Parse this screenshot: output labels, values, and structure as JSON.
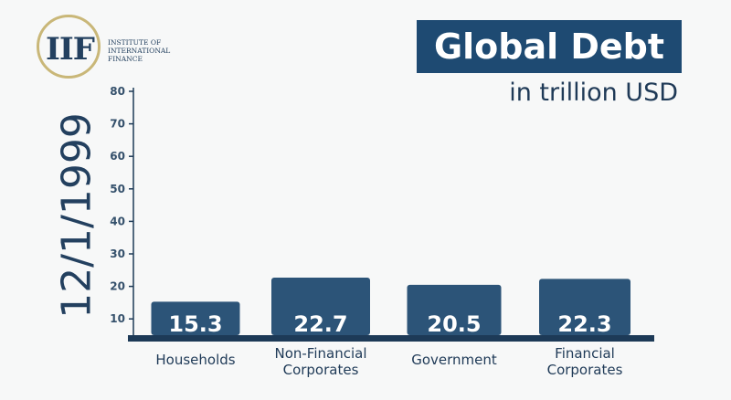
{
  "logo": {
    "mark": "IIF",
    "text_lines": [
      "Institute of",
      "International",
      "Finance"
    ]
  },
  "chart_data": {
    "type": "bar",
    "title": "Global Debt",
    "subtitle": "in trillion USD",
    "date_label": "12/1/1999",
    "categories": [
      [
        "Households"
      ],
      [
        "Non-Financial",
        "Corporates"
      ],
      [
        "Government"
      ],
      [
        "Financial",
        "Corporates"
      ]
    ],
    "values": [
      15.3,
      22.7,
      20.5,
      22.3
    ],
    "yticks": [
      10,
      20,
      30,
      40,
      50,
      60,
      70,
      80
    ],
    "ylim": [
      5,
      80
    ],
    "colors": {
      "bar": "#2c5478",
      "axis": "#1d3a57",
      "label": "#ffffff",
      "title_bg": "#1e4a72"
    }
  }
}
